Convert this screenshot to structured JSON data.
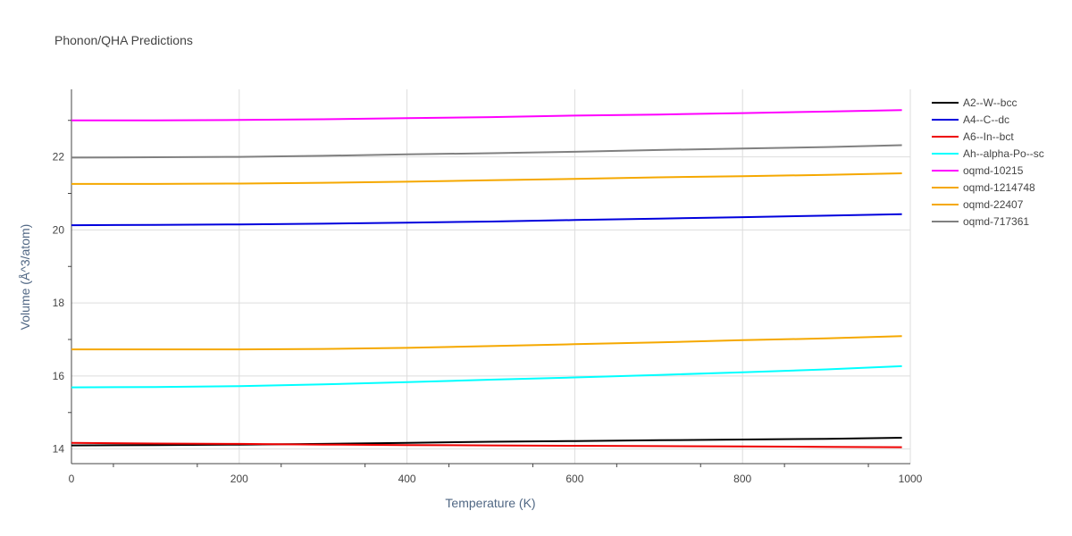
{
  "chart_data": {
    "type": "line",
    "title": "Phonon/QHA Predictions",
    "xlabel": "Temperature (K)",
    "ylabel": "Volume (Å^3/atom)",
    "xlim": [
      0,
      1000
    ],
    "ylim": [
      13.6,
      23.85
    ],
    "x_ticks": [
      0,
      200,
      400,
      600,
      800,
      1000
    ],
    "y_ticks": [
      14,
      16,
      18,
      20,
      22
    ],
    "grid": true,
    "legend_position": "right",
    "series": [
      {
        "name": "A2--W--bcc",
        "color": "#000000",
        "x": [
          0,
          100,
          200,
          300,
          400,
          500,
          600,
          700,
          800,
          900,
          990
        ],
        "y": [
          14.1,
          14.11,
          14.12,
          14.14,
          14.17,
          14.2,
          14.22,
          14.24,
          14.26,
          14.28,
          14.31
        ]
      },
      {
        "name": "A4--C--dc",
        "color": "#0000dd",
        "x": [
          0,
          100,
          200,
          300,
          400,
          500,
          600,
          700,
          800,
          900,
          990
        ],
        "y": [
          20.13,
          20.14,
          20.15,
          20.17,
          20.2,
          20.23,
          20.27,
          20.31,
          20.35,
          20.39,
          20.43
        ]
      },
      {
        "name": "A6--In--bct",
        "color": "#ee0000",
        "x": [
          0,
          100,
          200,
          300,
          400,
          500,
          600,
          700,
          800,
          900,
          990
        ],
        "y": [
          14.17,
          14.15,
          14.14,
          14.12,
          14.11,
          14.1,
          14.09,
          14.08,
          14.07,
          14.06,
          14.05
        ]
      },
      {
        "name": "Ah--alpha-Po--sc",
        "color": "#00ffff",
        "x": [
          0,
          100,
          200,
          300,
          400,
          500,
          600,
          700,
          800,
          900,
          990
        ],
        "y": [
          15.69,
          15.7,
          15.72,
          15.77,
          15.83,
          15.9,
          15.96,
          16.03,
          16.1,
          16.18,
          16.27
        ]
      },
      {
        "name": "oqmd-10215",
        "color": "#ff00ff",
        "x": [
          0,
          100,
          200,
          300,
          400,
          500,
          600,
          700,
          800,
          900,
          990
        ],
        "y": [
          23.0,
          23.0,
          23.01,
          23.03,
          23.06,
          23.09,
          23.13,
          23.16,
          23.2,
          23.24,
          23.28
        ]
      },
      {
        "name": "oqmd-1214748",
        "color": "#f5a800",
        "x": [
          0,
          100,
          200,
          300,
          400,
          500,
          600,
          700,
          800,
          900,
          990
        ],
        "y": [
          16.73,
          16.73,
          16.73,
          16.74,
          16.77,
          16.82,
          16.87,
          16.92,
          16.98,
          17.03,
          17.09
        ]
      },
      {
        "name": "oqmd-22407",
        "color": "#f5a800",
        "x": [
          0,
          100,
          200,
          300,
          400,
          500,
          600,
          700,
          800,
          900,
          990
        ],
        "y": [
          21.26,
          21.26,
          21.27,
          21.29,
          21.32,
          21.36,
          21.4,
          21.44,
          21.47,
          21.51,
          21.55
        ]
      },
      {
        "name": "oqmd-717361",
        "color": "#808080",
        "x": [
          0,
          100,
          200,
          300,
          400,
          500,
          600,
          700,
          800,
          900,
          990
        ],
        "y": [
          21.98,
          21.99,
          22.0,
          22.03,
          22.07,
          22.1,
          22.14,
          22.19,
          22.23,
          22.27,
          22.32
        ]
      }
    ]
  }
}
